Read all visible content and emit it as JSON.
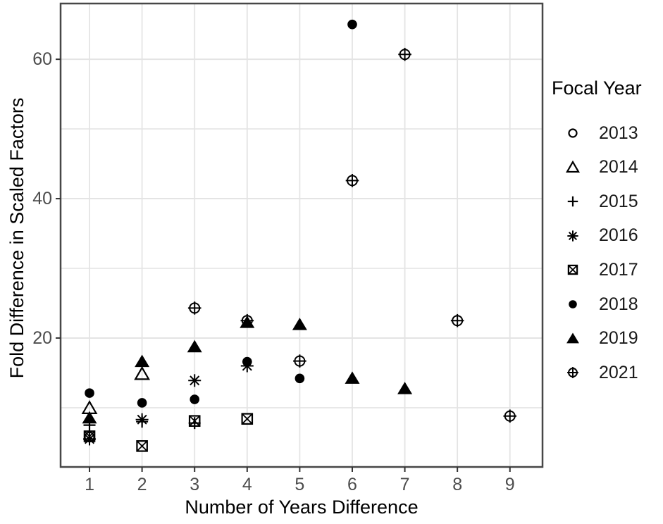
{
  "chart_data": {
    "type": "scatter",
    "title": "",
    "xlabel": "Number of Years Difference",
    "ylabel": "Fold Difference in Scaled Factors",
    "xlim": [
      0.45,
      9.62
    ],
    "ylim": [
      1.5,
      68
    ],
    "x_ticks": [
      1,
      2,
      3,
      4,
      5,
      6,
      7,
      8,
      9
    ],
    "y_ticks": [
      20,
      40,
      60
    ],
    "y_gridlines": [
      10,
      20,
      30,
      40,
      50,
      60
    ],
    "grid": true,
    "legend_position": "right",
    "legend_title": "Focal Year",
    "legend_order": [
      "2013",
      "2014",
      "2015",
      "2016",
      "2017",
      "2018",
      "2019",
      "2021"
    ],
    "marker_color": "#000000",
    "axis_text_color": "#4d4d4d",
    "grid_color": "#e4e4e4",
    "panel_border_color": "#474747",
    "series": [
      {
        "name": "2013",
        "shape": "open-circle",
        "points": [
          [
            1,
            5.8
          ]
        ]
      },
      {
        "name": "2014",
        "shape": "open-triangle",
        "points": [
          [
            1,
            9.9
          ],
          [
            2,
            14.8
          ]
        ]
      },
      {
        "name": "2015",
        "shape": "plus",
        "points": [
          [
            1,
            7.5
          ],
          [
            2,
            8.0
          ],
          [
            3,
            7.8
          ]
        ]
      },
      {
        "name": "2016",
        "shape": "asterisk",
        "points": [
          [
            1,
            5.5
          ],
          [
            2,
            8.3
          ],
          [
            3,
            13.9
          ],
          [
            4,
            16.0
          ]
        ]
      },
      {
        "name": "2017",
        "shape": "square-x",
        "points": [
          [
            1,
            5.9
          ],
          [
            2,
            4.5
          ],
          [
            3,
            8.1
          ],
          [
            4,
            8.4
          ]
        ]
      },
      {
        "name": "2021",
        "shape": "circle-plus",
        "points": [
          [
            3,
            24.3
          ],
          [
            4,
            22.5
          ],
          [
            5,
            16.7
          ],
          [
            6,
            42.6
          ],
          [
            7,
            60.7
          ],
          [
            8,
            22.5
          ],
          [
            9,
            8.8
          ]
        ]
      },
      {
        "name": "2018",
        "shape": "filled-circle",
        "points": [
          [
            1,
            12.1
          ],
          [
            2,
            10.7
          ],
          [
            3,
            11.2
          ],
          [
            4,
            16.6
          ],
          [
            5,
            14.2
          ],
          [
            6,
            65.0
          ]
        ]
      },
      {
        "name": "2019",
        "shape": "filled-triangle",
        "points": [
          [
            1,
            8.5
          ],
          [
            2,
            16.6
          ],
          [
            3,
            18.7
          ],
          [
            4,
            22.2
          ],
          [
            5,
            21.9
          ],
          [
            6,
            14.2
          ],
          [
            7,
            12.7
          ]
        ]
      }
    ]
  }
}
